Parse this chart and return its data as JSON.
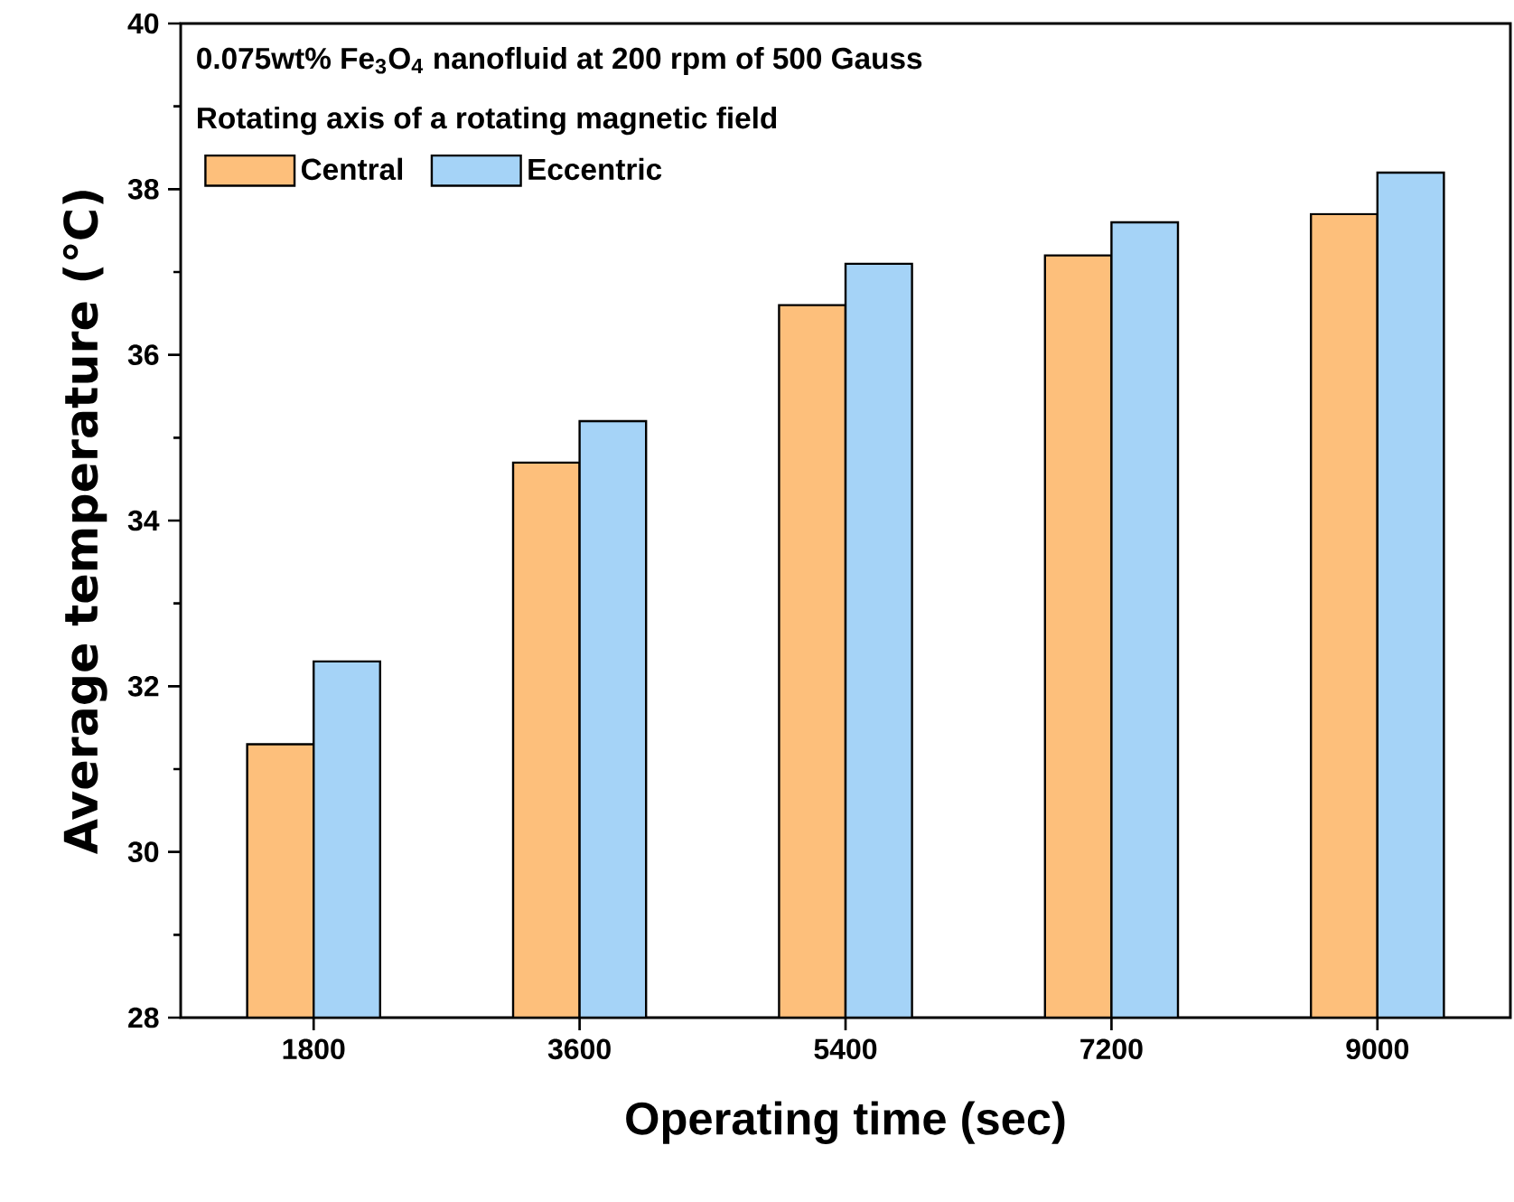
{
  "chart_data": {
    "type": "bar",
    "title": "0.075wt% Fe$_{3}$O$_{4}$ nanofluid at 200 rpm of 500 Gauss",
    "legend_title": "Rotating axis of a rotating magnetic field",
    "xlabel": "Operating time (sec)",
    "ylabel": "Average temperature (℃)",
    "categories": [
      "1800",
      "3600",
      "5400",
      "7200",
      "9000"
    ],
    "series": [
      {
        "name": "Central",
        "color": "#fdbf7b",
        "values": [
          31.3,
          34.7,
          36.6,
          37.2,
          37.7
        ]
      },
      {
        "name": "Eccentric",
        "color": "#a5d3f7",
        "values": [
          32.3,
          35.2,
          37.1,
          37.6,
          38.2
        ]
      }
    ],
    "ylim": [
      28,
      40
    ],
    "yticks": [
      28,
      30,
      32,
      34,
      36,
      38,
      40
    ],
    "legend": "top left"
  }
}
